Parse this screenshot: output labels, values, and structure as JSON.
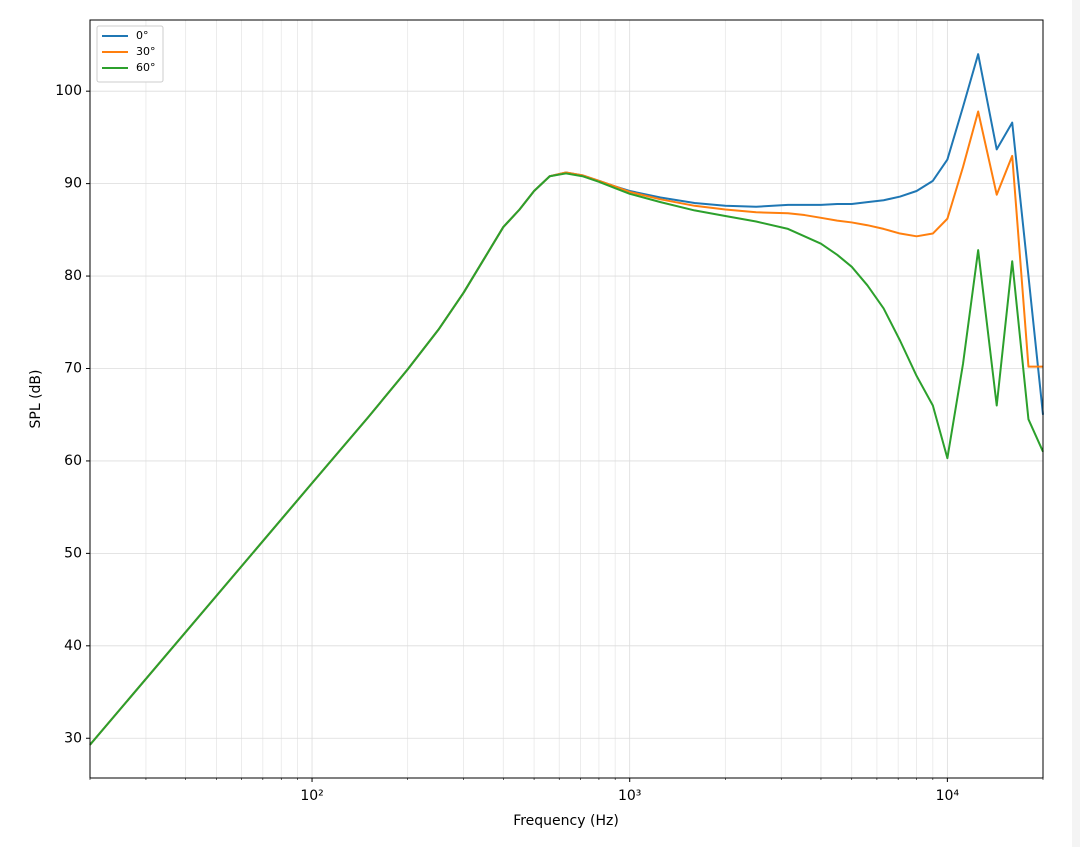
{
  "chart_data": {
    "type": "line",
    "xlabel": "Frequency (Hz)",
    "ylabel": "SPL (dB)",
    "xscale": "log",
    "grid": true,
    "legend": "upper left",
    "xlim": [
      20,
      20000
    ],
    "ylim": [
      25.7,
      107.7
    ],
    "xticks": [
      {
        "value": 100,
        "label": "10²"
      },
      {
        "value": 1000,
        "label": "10³"
      },
      {
        "value": 10000,
        "label": "10⁴"
      }
    ],
    "xminorticks": [
      20,
      30,
      40,
      50,
      60,
      70,
      80,
      90,
      200,
      300,
      400,
      500,
      600,
      700,
      800,
      900,
      2000,
      3000,
      4000,
      5000,
      6000,
      7000,
      8000,
      9000,
      20000
    ],
    "yticks": [
      30,
      40,
      50,
      60,
      70,
      80,
      90,
      100
    ],
    "x": [
      20,
      50,
      100,
      150,
      200,
      250,
      300,
      350,
      400,
      450,
      500,
      560,
      630,
      710,
      800,
      900,
      1000,
      1250,
      1600,
      2000,
      2500,
      3150,
      3550,
      4000,
      4500,
      5000,
      5600,
      6300,
      7100,
      8000,
      9000,
      10000,
      11200,
      12500,
      14300,
      16000,
      18000,
      20000
    ],
    "series": [
      {
        "name": "0°",
        "color": "#1f77b4",
        "values": [
          29.3,
          45.4,
          57.6,
          64.7,
          69.9,
          74.2,
          78.2,
          82.0,
          85.3,
          87.2,
          89.2,
          90.8,
          91.2,
          90.9,
          90.3,
          89.7,
          89.2,
          88.5,
          87.9,
          87.6,
          87.5,
          87.7,
          87.7,
          87.7,
          87.8,
          87.8,
          88.0,
          88.2,
          88.6,
          89.2,
          90.3,
          92.6,
          98.3,
          104.0,
          93.7,
          96.6,
          80.0,
          65.0
        ]
      },
      {
        "name": "30°",
        "color": "#ff7f0e",
        "values": [
          29.3,
          45.4,
          57.6,
          64.7,
          69.9,
          74.2,
          78.2,
          82.0,
          85.3,
          87.2,
          89.2,
          90.8,
          91.2,
          90.9,
          90.3,
          89.7,
          89.1,
          88.3,
          87.6,
          87.2,
          86.9,
          86.8,
          86.6,
          86.3,
          86.0,
          85.8,
          85.5,
          85.1,
          84.6,
          84.3,
          84.6,
          86.2,
          91.8,
          97.8,
          88.8,
          93.0,
          70.2,
          70.2
        ]
      },
      {
        "name": "60°",
        "color": "#2ca02c",
        "values": [
          29.3,
          45.4,
          57.6,
          64.7,
          69.9,
          74.2,
          78.2,
          82.0,
          85.3,
          87.2,
          89.2,
          90.8,
          91.1,
          90.8,
          90.2,
          89.5,
          88.9,
          88.0,
          87.1,
          86.5,
          85.9,
          85.1,
          84.3,
          83.5,
          82.3,
          81.0,
          79.0,
          76.5,
          73.0,
          69.2,
          66.0,
          60.3,
          70.5,
          82.8,
          66.0,
          81.6,
          64.5,
          61.0
        ]
      }
    ]
  }
}
